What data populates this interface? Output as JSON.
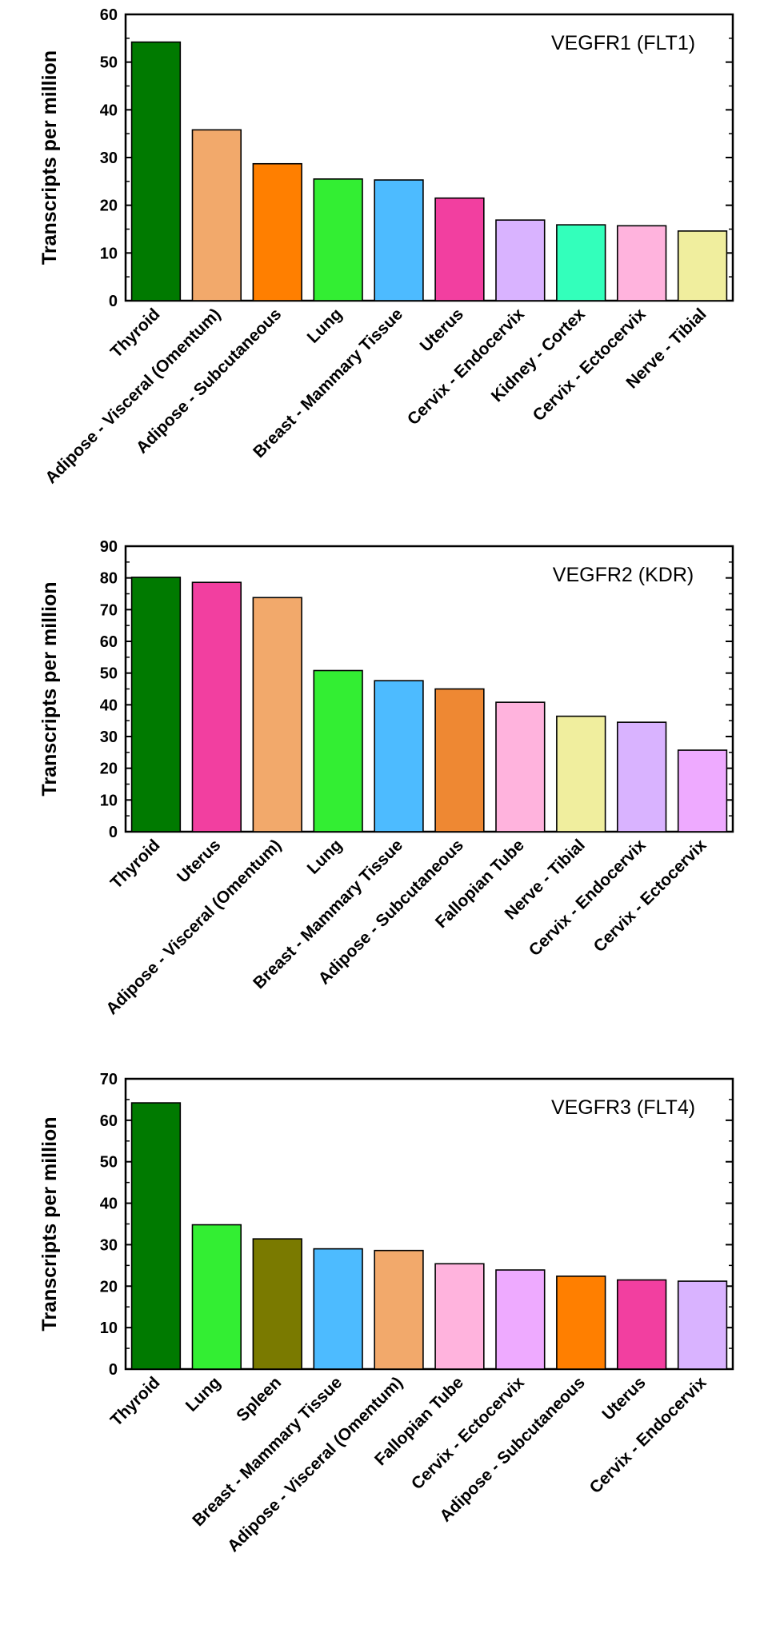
{
  "chart_data": [
    {
      "type": "bar",
      "title": "VEGFR1 (FLT1)",
      "ylabel": "Transcripts per million",
      "xlabel": "",
      "ylim": [
        0,
        60
      ],
      "yticks": [
        0,
        10,
        20,
        30,
        40,
        50,
        60
      ],
      "categories": [
        "Thyroid",
        "Adipose - Visceral (Omentum)",
        "Adipose - Subcutaneous",
        "Lung",
        "Breast - Mammary Tissue",
        "Uterus",
        "Cervix - Endocervix",
        "Kidney - Cortex",
        "Cervix - Ectocervix",
        "Nerve - Tibial"
      ],
      "values": [
        54.2,
        35.8,
        28.7,
        25.5,
        25.3,
        21.5,
        16.9,
        15.9,
        15.7,
        14.6
      ],
      "colors": [
        "#007a00",
        "#f2a96b",
        "#ff7f00",
        "#33ee33",
        "#4dbbff",
        "#f23fa0",
        "#d9b3ff",
        "#33ffbb",
        "#ffb3dd",
        "#f0ee9e"
      ]
    },
    {
      "type": "bar",
      "title": "VEGFR2 (KDR)",
      "ylabel": "Transcripts per million",
      "xlabel": "",
      "ylim": [
        0,
        90
      ],
      "yticks": [
        0,
        10,
        20,
        30,
        40,
        50,
        60,
        70,
        80,
        90
      ],
      "categories": [
        "Thyroid",
        "Uterus",
        "Adipose - Visceral (Omentum)",
        "Lung",
        "Breast - Mammary Tissue",
        "Adipose - Subcutaneous",
        "Fallopian Tube",
        "Nerve - Tibial",
        "Cervix - Endocervix",
        "Cervix - Ectocervix"
      ],
      "values": [
        80.2,
        78.6,
        73.8,
        50.8,
        47.6,
        45.0,
        40.8,
        36.4,
        34.5,
        25.7
      ],
      "colors": [
        "#007a00",
        "#f23fa0",
        "#f2a96b",
        "#33ee33",
        "#4dbbff",
        "#ee8833",
        "#ffb3dd",
        "#f0ee9e",
        "#d9b3ff",
        "#eeaaff"
      ]
    },
    {
      "type": "bar",
      "title": "VEGFR3 (FLT4)",
      "ylabel": "Transcripts per million",
      "xlabel": "",
      "ylim": [
        0,
        70
      ],
      "yticks": [
        0,
        10,
        20,
        30,
        40,
        50,
        60,
        70
      ],
      "categories": [
        "Thyroid",
        "Lung",
        "Spleen",
        "Breast - Mammary Tissue",
        "Adipose - Visceral (Omentum)",
        "Fallopian Tube",
        "Cervix - Ectocervix",
        "Adipose - Subcutaneous",
        "Uterus",
        "Cervix - Endocervix"
      ],
      "values": [
        64.2,
        34.8,
        31.4,
        29.0,
        28.6,
        25.4,
        23.9,
        22.4,
        21.5,
        21.2
      ],
      "colors": [
        "#007a00",
        "#33ee33",
        "#7a7a00",
        "#4dbbff",
        "#f2a96b",
        "#ffb3dd",
        "#eeaaff",
        "#ff7f00",
        "#f23fa0",
        "#d9b3ff"
      ]
    }
  ]
}
